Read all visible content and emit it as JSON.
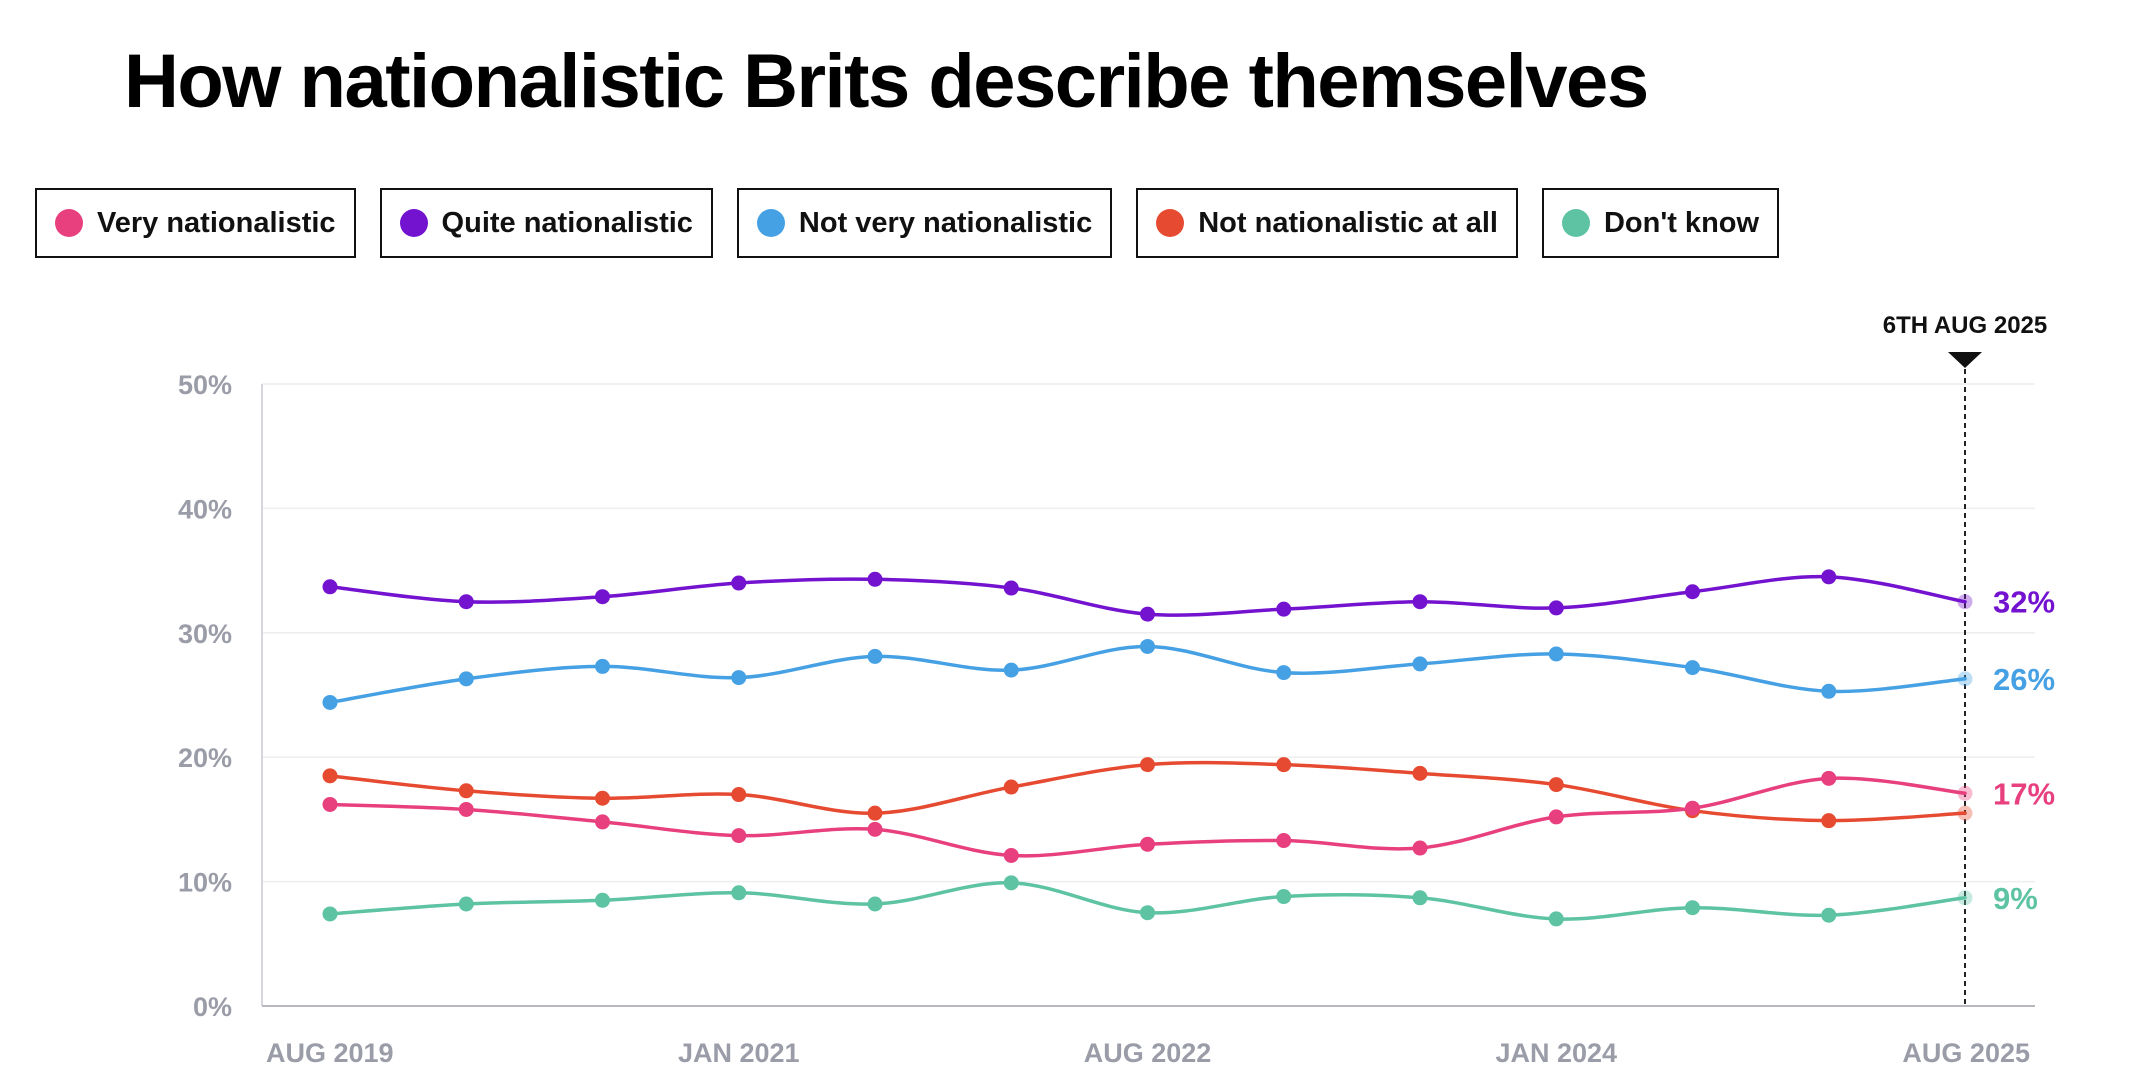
{
  "title": "How nationalistic Brits describe themselves",
  "colors": {
    "very": "#e8407e",
    "quite": "#7312cf",
    "not_very": "#46a0e4",
    "not_at_all": "#e64b32",
    "dont_know": "#5dc3a3",
    "axis_text": "#9a9ca8",
    "grid": "#eeeeee"
  },
  "legend": [
    {
      "key": "very",
      "label": "Very nationalistic"
    },
    {
      "key": "quite",
      "label": "Quite nationalistic"
    },
    {
      "key": "not_very",
      "label": "Not very nationalistic"
    },
    {
      "key": "not_at_all",
      "label": "Not nationalistic at all"
    },
    {
      "key": "dont_know",
      "label": "Don't know"
    }
  ],
  "chart_data": {
    "type": "line",
    "title": "How nationalistic Brits describe themselves",
    "xlabel": "",
    "ylabel": "",
    "ylim": [
      0,
      50
    ],
    "yticks": [
      0,
      10,
      20,
      30,
      40,
      50
    ],
    "ytick_labels": [
      "0%",
      "10%",
      "20%",
      "30%",
      "40%",
      "50%"
    ],
    "x_count": 13,
    "xtick_labels": [
      {
        "index": 0,
        "label": "AUG 2019"
      },
      {
        "index": 3,
        "label": "JAN 2021"
      },
      {
        "index": 6,
        "label": "AUG 2022"
      },
      {
        "index": 9,
        "label": "JAN 2024"
      },
      {
        "index": 12,
        "label": "AUG 2025"
      }
    ],
    "marker": {
      "index": 12,
      "label": "6TH AUG 2025"
    },
    "series": [
      {
        "key": "quite",
        "name": "Quite nationalistic",
        "end_label": "32%",
        "values": [
          33.7,
          32.5,
          32.9,
          34.0,
          34.3,
          33.6,
          31.5,
          31.9,
          32.5,
          32.0,
          33.3,
          34.5,
          32.5
        ]
      },
      {
        "key": "not_very",
        "name": "Not very nationalistic",
        "end_label": "26%",
        "values": [
          24.4,
          26.3,
          27.3,
          26.4,
          28.1,
          27.0,
          28.9,
          26.8,
          27.5,
          28.3,
          27.2,
          25.3,
          26.3
        ]
      },
      {
        "key": "not_at_all",
        "name": "Not nationalistic at all",
        "end_label": "",
        "values": [
          18.5,
          17.3,
          16.7,
          17.0,
          15.5,
          17.6,
          19.4,
          19.4,
          18.7,
          17.8,
          15.7,
          14.9,
          15.5
        ]
      },
      {
        "key": "very",
        "name": "Very nationalistic",
        "end_label": "17%",
        "values": [
          16.2,
          15.8,
          14.8,
          13.7,
          14.2,
          12.1,
          13.0,
          13.3,
          12.7,
          15.2,
          15.9,
          18.3,
          17.1
        ]
      },
      {
        "key": "dont_know",
        "name": "Don't know",
        "end_label": "9%",
        "values": [
          7.4,
          8.2,
          8.5,
          9.1,
          8.2,
          9.9,
          7.5,
          8.8,
          8.7,
          7.0,
          7.9,
          7.3,
          8.7
        ]
      }
    ]
  }
}
